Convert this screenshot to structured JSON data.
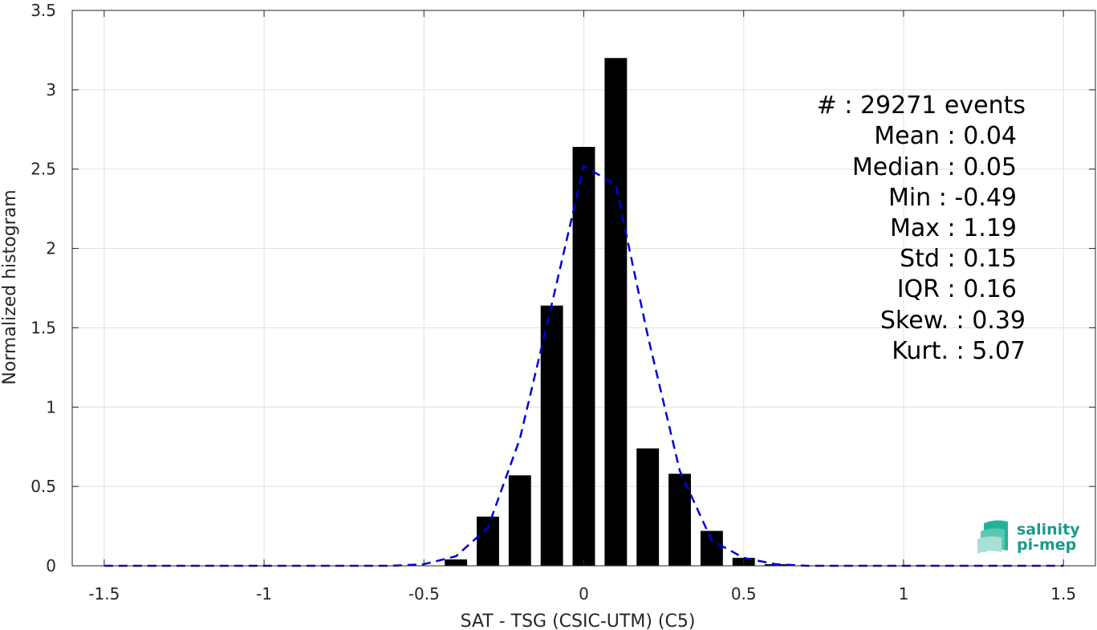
{
  "chart_data": {
    "type": "bar",
    "xlabel": "SAT - TSG (CSIC-UTM) (C5)",
    "ylabel": "Normalized histogram",
    "xlim": [
      -1.6,
      1.6
    ],
    "ylim": [
      0,
      3.5
    ],
    "x_ticks": [
      "-1.5",
      "-1",
      "-0.5",
      "0",
      "0.5",
      "1",
      "1.5"
    ],
    "y_ticks": [
      "0",
      "0.5",
      "1",
      "1.5",
      "2",
      "2.5",
      "3",
      "3.5"
    ],
    "grid": true,
    "bar_width": 0.07,
    "bars": {
      "x": [
        -0.4,
        -0.3,
        -0.2,
        -0.1,
        0.0,
        0.1,
        0.2,
        0.3,
        0.4,
        0.5,
        0.6
      ],
      "values": [
        0.04,
        0.31,
        0.57,
        1.64,
        2.64,
        3.2,
        0.74,
        0.58,
        0.22,
        0.05,
        0.01
      ]
    },
    "fit_curve": {
      "style": "dashed",
      "color": "#0000dd",
      "x": [
        -1.5,
        -1.4,
        -1.3,
        -1.2,
        -1.1,
        -1.0,
        -0.9,
        -0.8,
        -0.7,
        -0.6,
        -0.5,
        -0.4,
        -0.3,
        -0.2,
        -0.1,
        0.0,
        0.1,
        0.2,
        0.3,
        0.4,
        0.5,
        0.6,
        0.7,
        0.8,
        0.9,
        1.0,
        1.1,
        1.2,
        1.3,
        1.4,
        1.5
      ],
      "y": [
        0,
        0,
        0,
        0,
        0,
        0,
        0,
        0,
        0,
        0,
        0.01,
        0.06,
        0.24,
        0.8,
        1.65,
        2.52,
        2.4,
        1.45,
        0.6,
        0.16,
        0.05,
        0.01,
        0,
        0,
        0,
        0,
        0,
        0,
        0,
        0,
        0
      ]
    },
    "stats": {
      "count": "#  : 29271 events",
      "mean": "Mean : 0.04",
      "median": "Median : 0.05",
      "min": "Min : -0.49",
      "max": "Max : 1.19",
      "std": "Std : 0.15",
      "iqr": "IQR : 0.16",
      "skew": "Skew. : 0.39",
      "kurt": "Kurt. : 5.07"
    },
    "colors": {
      "bars": "#000000",
      "fit": "#0000dd",
      "grid": "#e0e0e0",
      "axes": "#262626"
    }
  },
  "logo": {
    "line1": "salinity",
    "line2": "pi-mep"
  }
}
